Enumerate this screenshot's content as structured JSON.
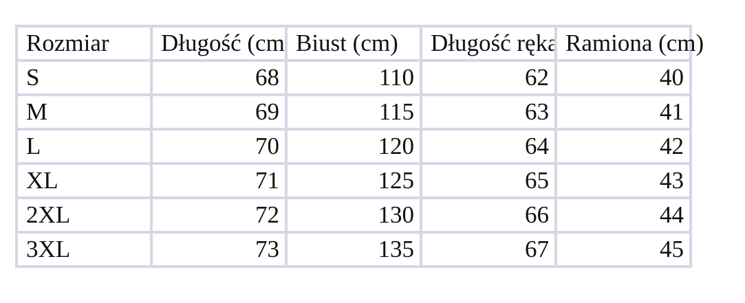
{
  "table": {
    "headers": [
      "Rozmiar",
      "Długość (cm)",
      "Biust (cm)",
      "Długość rękawa (cm)",
      "Ramiona (cm)"
    ],
    "rows": [
      [
        "S",
        "68",
        "110",
        "62",
        "40"
      ],
      [
        "M",
        "69",
        "115",
        "63",
        "41"
      ],
      [
        "L",
        "70",
        "120",
        "64",
        "42"
      ],
      [
        "XL",
        "71",
        "125",
        "65",
        "43"
      ],
      [
        "2XL",
        "72",
        "130",
        "66",
        "44"
      ],
      [
        "3XL",
        "73",
        "135",
        "67",
        "45"
      ]
    ],
    "border_color": "#d6d6e6"
  }
}
